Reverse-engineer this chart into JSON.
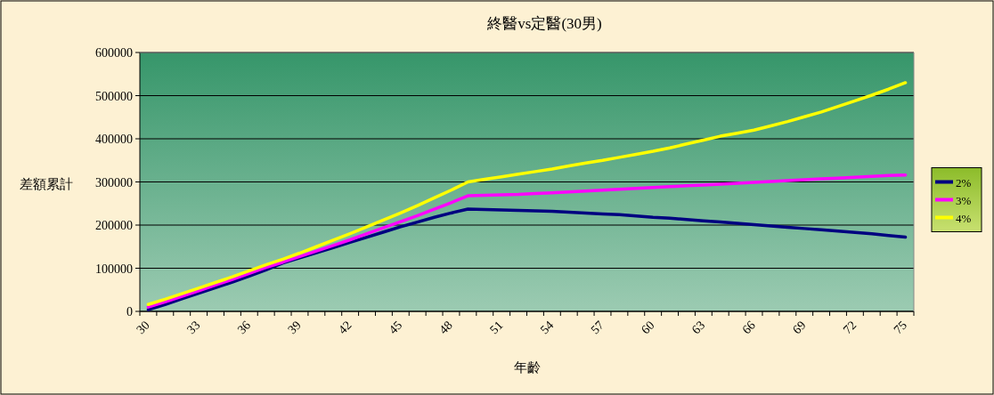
{
  "chart_data": {
    "type": "line",
    "title": "終醫vs定醫(30男)",
    "xlabel": "年齡",
    "ylabel": "差額累計",
    "categories": [
      "30",
      null,
      null,
      "33",
      null,
      null,
      "36",
      null,
      null,
      "39",
      null,
      null,
      "42",
      null,
      null,
      "45",
      null,
      null,
      "48",
      null,
      null,
      "51",
      null,
      null,
      "54",
      null,
      null,
      "57",
      null,
      null,
      "60",
      null,
      null,
      "63",
      null,
      null,
      "66",
      null,
      null,
      "69",
      null,
      null,
      "72",
      null,
      null,
      "75"
    ],
    "series": [
      {
        "name": "2%",
        "color": "#000080",
        "values": [
          4000,
          16000,
          29000,
          42000,
          55000,
          68000,
          82000,
          96000,
          112000,
          124000,
          136000,
          148000,
          160000,
          172000,
          184000,
          196000,
          207000,
          218000,
          228000,
          237000,
          236000,
          235000,
          234000,
          233000,
          232000,
          230000,
          228000,
          226000,
          224000,
          221000,
          218000,
          216000,
          213000,
          210000,
          207000,
          204000,
          201000,
          198000,
          195000,
          192000,
          189000,
          186000,
          183000,
          180000,
          176000,
          172000
        ]
      },
      {
        "name": "3%",
        "color": "#ff00ff",
        "values": [
          10000,
          22000,
          35000,
          48000,
          61000,
          74000,
          88000,
          102000,
          114000,
          127000,
          140000,
          153000,
          166000,
          180000,
          194000,
          208000,
          222000,
          237000,
          252000,
          268000,
          269000,
          270000,
          271000,
          273000,
          275000,
          277000,
          279000,
          281000,
          283000,
          285000,
          287000,
          289000,
          291000,
          293000,
          295000,
          297000,
          299000,
          301000,
          303000,
          305000,
          307000,
          309000,
          311000,
          313000,
          315000,
          316000
        ]
      },
      {
        "name": "4%",
        "color": "#ffff00",
        "values": [
          16000,
          28000,
          41000,
          54000,
          67000,
          80000,
          94000,
          108000,
          121000,
          135000,
          150000,
          165000,
          180000,
          196000,
          212000,
          228000,
          245000,
          263000,
          281000,
          300000,
          306000,
          312000,
          318000,
          324000,
          330000,
          337000,
          344000,
          350000,
          357000,
          364000,
          371000,
          379000,
          388000,
          397000,
          406000,
          413000,
          420000,
          430000,
          440000,
          451000,
          462000,
          475000,
          488000,
          501000,
          515000,
          530000
        ]
      }
    ],
    "ylim": [
      0,
      600000
    ],
    "yticks": [
      0,
      100000,
      200000,
      300000,
      400000,
      500000,
      600000
    ],
    "grid": "y",
    "legend": "right"
  }
}
